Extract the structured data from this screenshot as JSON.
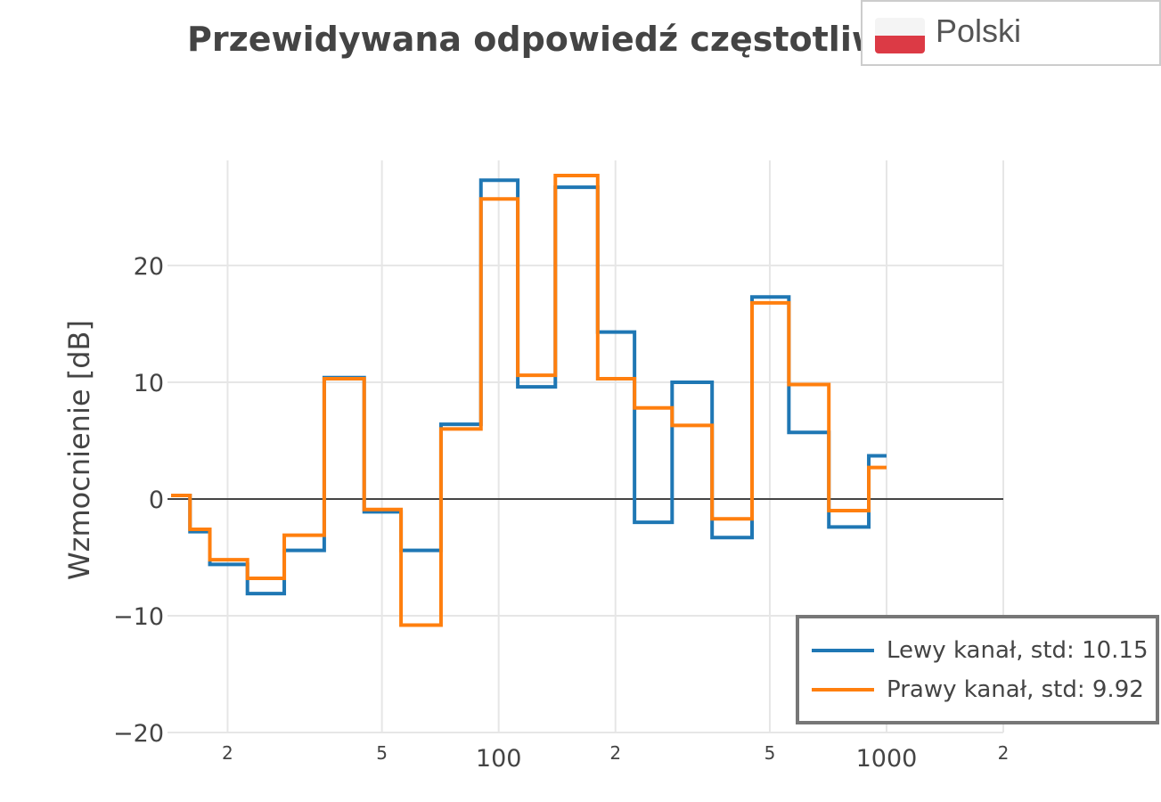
{
  "language_selector": {
    "label": "Polski",
    "flag": {
      "top_color": "#f4f4f4",
      "bottom_color": "#dc3a45"
    }
  },
  "chart_data": {
    "type": "line",
    "line_shape": "step",
    "title": "Przewidywana odpowiedź częstotliwo",
    "xlabel": "",
    "ylabel": "Wzmocnienie [dB]",
    "x_scale": "log",
    "xlim": [
      14,
      2000
    ],
    "ylim": [
      -20,
      29
    ],
    "grid": true,
    "legend_position": "bottom-right",
    "x_tick_labels": [
      {
        "value": 20,
        "label": "2"
      },
      {
        "value": 50,
        "label": "5"
      },
      {
        "value": 100,
        "label": "100"
      },
      {
        "value": 200,
        "label": "2"
      },
      {
        "value": 500,
        "label": "5"
      },
      {
        "value": 1000,
        "label": "1000"
      },
      {
        "value": 2000,
        "label": "2"
      }
    ],
    "y_tick_labels": [
      {
        "value": 20,
        "label": "20"
      },
      {
        "value": 10,
        "label": "10"
      },
      {
        "value": 0,
        "label": "0"
      },
      {
        "value": -10,
        "label": "−10"
      },
      {
        "value": -20,
        "label": "−20"
      }
    ],
    "zero_line": true,
    "series": [
      {
        "name": "Lewy kanał, std: 10.15",
        "color": "#1f77b4",
        "x": [
          14.3,
          16,
          18,
          22.5,
          28,
          35.5,
          45,
          56,
          71,
          90,
          112,
          140,
          180,
          224,
          280,
          355,
          450,
          560,
          710,
          900,
          1000
        ],
        "y": [
          0.3,
          -2.8,
          -5.6,
          -8.1,
          -4.4,
          10.4,
          -1.1,
          -4.4,
          6.4,
          27.3,
          9.6,
          26.7,
          14.3,
          -2.0,
          10.0,
          -3.3,
          17.3,
          5.7,
          -2.4,
          3.7,
          3.7
        ]
      },
      {
        "name": "Prawy kanał, std: 9.92",
        "color": "#ff7f0e",
        "x": [
          14.3,
          16,
          18,
          22.5,
          28,
          35.5,
          45,
          56,
          71,
          90,
          112,
          140,
          180,
          224,
          280,
          355,
          450,
          560,
          710,
          900,
          1000
        ],
        "y": [
          0.3,
          -2.6,
          -5.2,
          -6.8,
          -3.1,
          10.3,
          -0.9,
          -10.8,
          6.0,
          25.7,
          10.6,
          27.7,
          10.3,
          7.8,
          6.3,
          -1.7,
          16.8,
          9.8,
          -1.0,
          2.7,
          2.7
        ]
      }
    ]
  }
}
